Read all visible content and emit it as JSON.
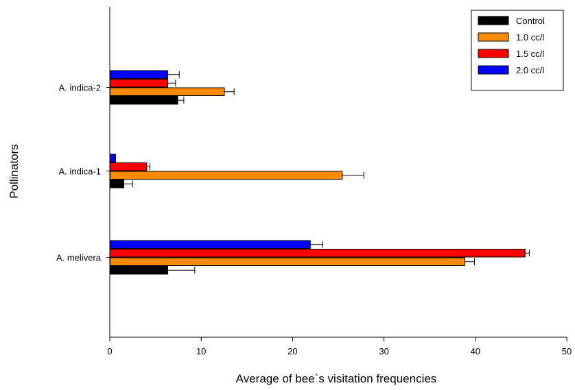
{
  "chart_data": {
    "type": "bar",
    "orientation": "horizontal",
    "title": "",
    "xlabel": "Average of bee`s visitation frequencies",
    "ylabel": "Pollinators",
    "xlim": [
      0,
      50
    ],
    "xticks": [
      0,
      10,
      20,
      30,
      40,
      50
    ],
    "categories": [
      "A. melivera",
      "A. indica-1",
      "A. indica-2"
    ],
    "series": [
      {
        "name": "Control",
        "color": "#000000",
        "values": [
          6.3,
          1.5,
          7.4
        ],
        "errors": [
          3.0,
          1.0,
          0.7
        ]
      },
      {
        "name": "1.0 cc/l",
        "color": "#ff8c00",
        "values": [
          38.8,
          25.4,
          12.5
        ],
        "errors": [
          1.1,
          2.4,
          1.1
        ]
      },
      {
        "name": "1.5 cc/l",
        "color": "#ff0000",
        "values": [
          45.4,
          4.0,
          6.3
        ],
        "errors": [
          0.5,
          0.4,
          0.9
        ]
      },
      {
        "name": "2.0 cc/l",
        "color": "#0000ff",
        "values": [
          21.9,
          0.6,
          6.3
        ],
        "errors": [
          1.4,
          0.0,
          1.3
        ]
      }
    ],
    "legend_position": "top-right",
    "grid": false
  }
}
